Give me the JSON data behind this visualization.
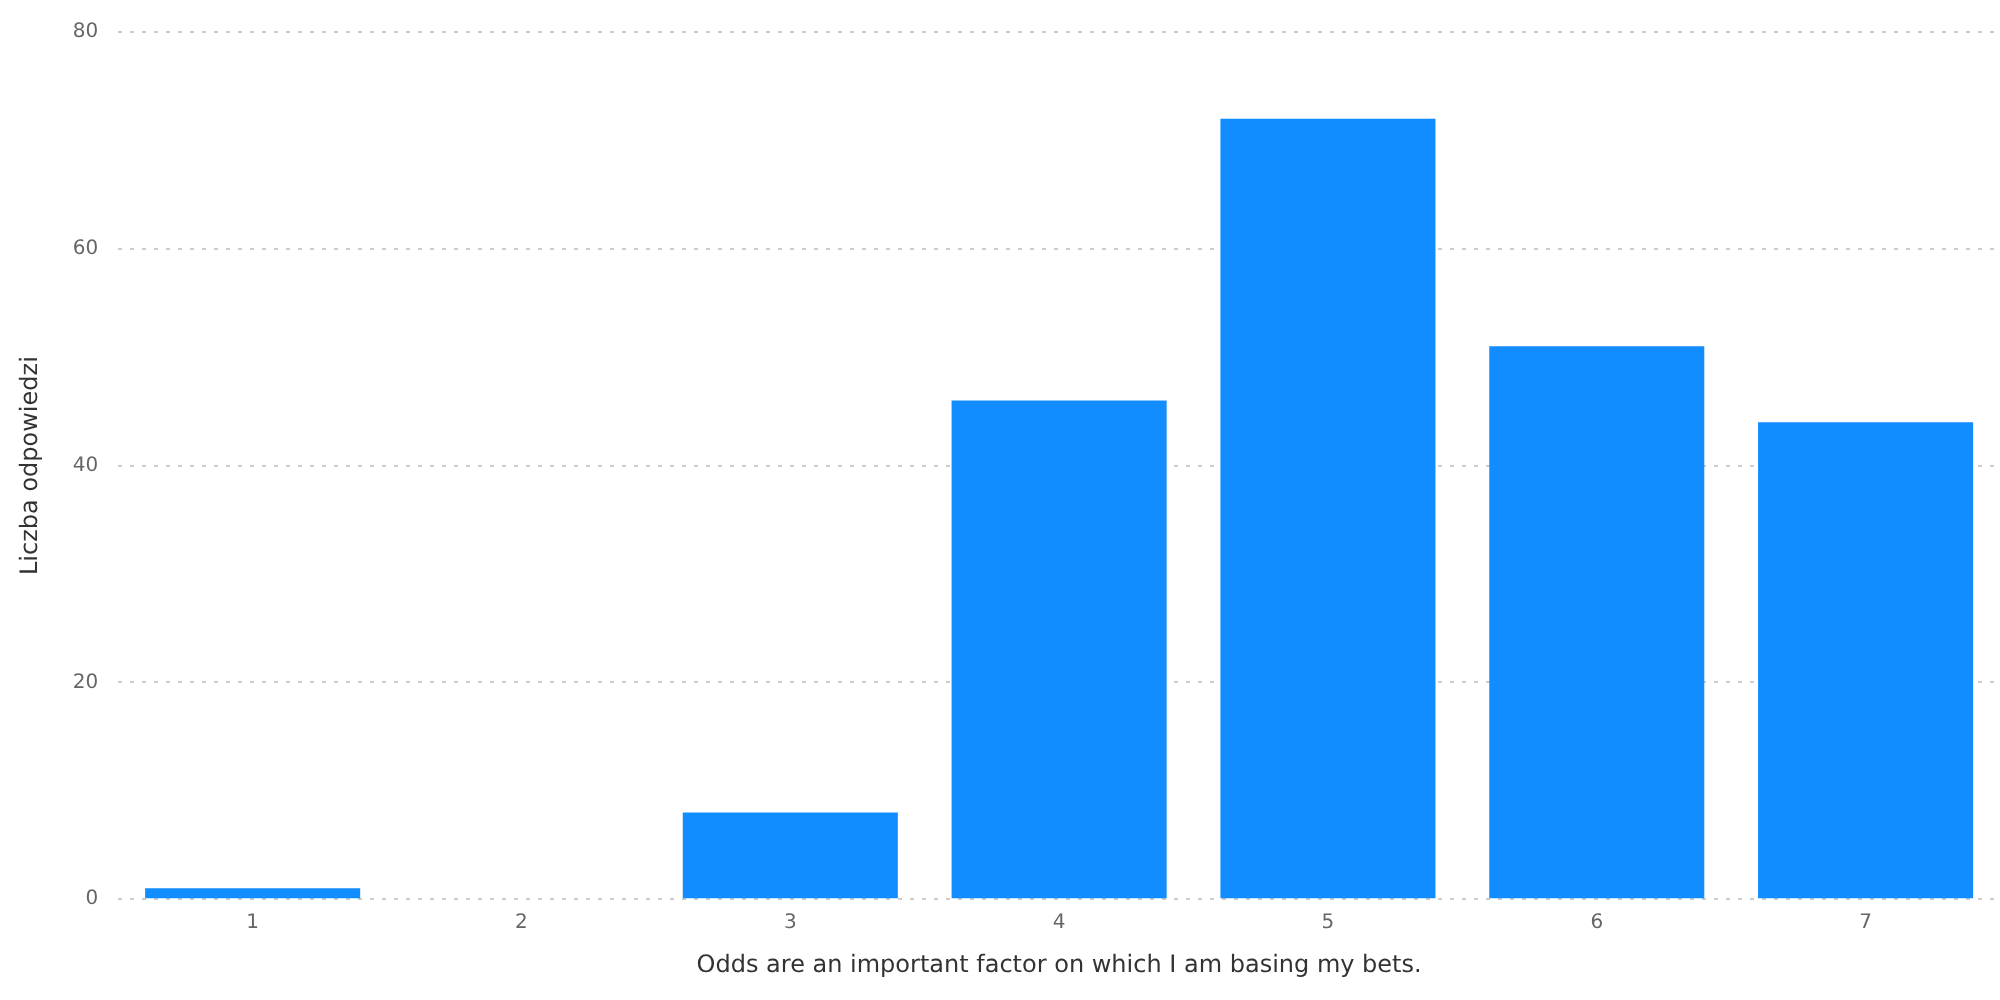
{
  "chart_data": {
    "type": "bar",
    "xlabel": "Odds are an important factor on which I am basing my bets.",
    "ylabel": "Liczba odpowiedzi",
    "categories": [
      "1",
      "2",
      "3",
      "4",
      "5",
      "6",
      "7"
    ],
    "values": [
      1,
      0,
      8,
      46,
      72,
      51,
      44
    ],
    "color": "#118dff",
    "ylim": [
      0,
      80
    ],
    "yticks": [
      0,
      20,
      40,
      60,
      80
    ],
    "grid": "y",
    "legend": false
  }
}
